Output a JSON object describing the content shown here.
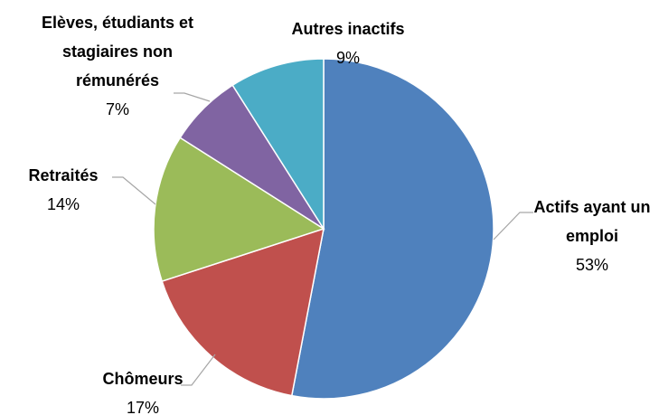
{
  "chart_data": {
    "type": "pie",
    "categories": [
      "Actifs ayant un emploi",
      "Chômeurs",
      "Retraités",
      "Elèves, étudiants et stagiaires non rémunérés",
      "Autres inactifs"
    ],
    "values": [
      53,
      17,
      14,
      7,
      9
    ],
    "value_labels": [
      "53%",
      "17%",
      "14%",
      "7%",
      "9%"
    ],
    "colors": [
      "#4f81bd",
      "#c0504d",
      "#9bbb59",
      "#8064a2",
      "#4bacc6"
    ]
  }
}
